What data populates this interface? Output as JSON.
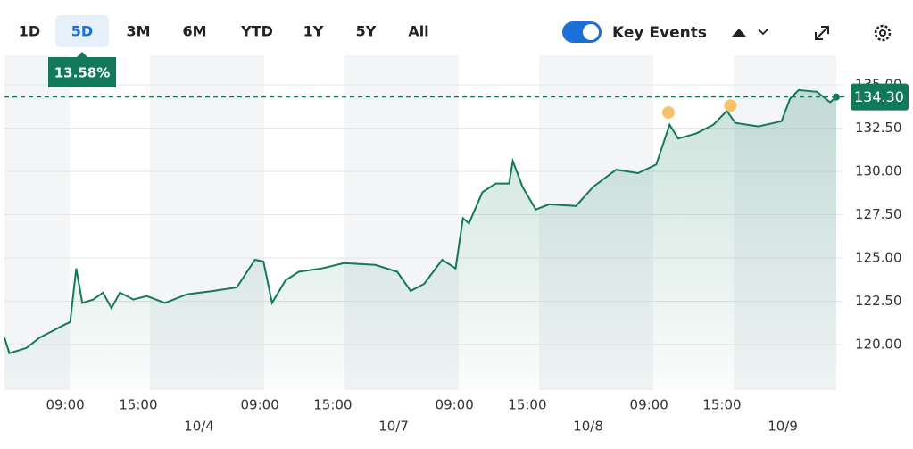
{
  "toolbar": {
    "ranges": [
      "1D",
      "5D",
      "3M",
      "6M",
      "YTD",
      "1Y",
      "5Y",
      "All"
    ],
    "selected": 1,
    "toggle_label": "Key Events"
  },
  "chart_data": {
    "type": "line",
    "color": "#13795b",
    "x": [
      0,
      0.4,
      1.8,
      2.9,
      4.0,
      4.8,
      5.4,
      5.9,
      6.4,
      7.3,
      8.1,
      8.8,
      9.5,
      10.6,
      11.7,
      13.2,
      15.0,
      17.2,
      19.1,
      20.6,
      21.3,
      22.0,
      23.1,
      24.2,
      26.1,
      27.9,
      30.5,
      32.3,
      33.4,
      34.5,
      36.0,
      37.1,
      37.7,
      38.2,
      39.3,
      40.4,
      41.5,
      41.8,
      42.6,
      43.7,
      44.8,
      47.0,
      48.4,
      50.3,
      52.1,
      53.6,
      54.7,
      55.4,
      56.9,
      58.3,
      59.4,
      60.1,
      62.0,
      63.9,
      64.6,
      65.3,
      66.8,
      67.9,
      68.4
    ],
    "values": [
      120.4,
      119.5,
      119.8,
      120.4,
      120.8,
      121.1,
      121.3,
      124.4,
      122.4,
      122.6,
      123.0,
      122.1,
      123.0,
      122.6,
      122.8,
      122.4,
      122.9,
      123.1,
      123.3,
      124.9,
      124.8,
      122.4,
      123.7,
      124.2,
      124.4,
      124.7,
      124.6,
      124.2,
      123.1,
      123.5,
      124.9,
      124.4,
      127.3,
      127.0,
      128.8,
      129.3,
      129.3,
      130.6,
      129.1,
      127.8,
      128.1,
      128.0,
      129.1,
      130.1,
      129.9,
      130.4,
      132.7,
      131.9,
      132.2,
      132.7,
      133.5,
      132.8,
      132.6,
      132.9,
      134.2,
      134.7,
      134.6,
      134.0,
      134.3
    ],
    "xlim": [
      0,
      68.4
    ],
    "ylim": [
      117.37,
      136.55
    ],
    "yticks": [
      {
        "value": 120,
        "label": "120.00"
      },
      {
        "value": 122.5,
        "label": "122.50"
      },
      {
        "value": 125,
        "label": "125.00"
      },
      {
        "value": 127.5,
        "label": "127.50"
      },
      {
        "value": 130,
        "label": "130.00"
      },
      {
        "value": 132.5,
        "label": "132.50"
      },
      {
        "value": 135,
        "label": "135.00"
      }
    ],
    "xticks": [
      {
        "value": 5,
        "label": "09:00"
      },
      {
        "value": 11,
        "label": "15:00"
      },
      {
        "value": 21,
        "label": "09:00"
      },
      {
        "value": 27,
        "label": "15:00"
      },
      {
        "value": 37,
        "label": "09:00"
      },
      {
        "value": 43,
        "label": "15:00"
      },
      {
        "value": 53,
        "label": "09:00"
      },
      {
        "value": 59,
        "label": "15:00"
      }
    ],
    "date_ticks": [
      {
        "value": 16,
        "label": "10/4"
      },
      {
        "value": 32,
        "label": "10/7"
      },
      {
        "value": 48,
        "label": "10/8"
      },
      {
        "value": 64,
        "label": "10/9"
      }
    ],
    "last_price": {
      "value": 134.3,
      "label": "134.30"
    },
    "change_label": "13.58%",
    "events": {
      "x": [
        54.6,
        59.7
      ],
      "y": [
        133.4,
        133.8
      ]
    },
    "grid": true
  }
}
